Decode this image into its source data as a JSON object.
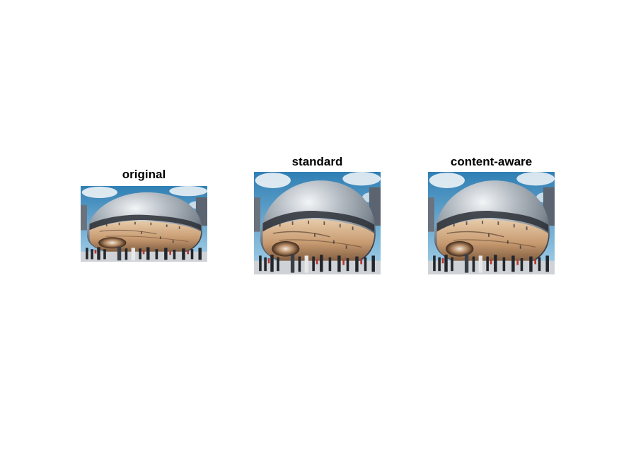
{
  "panels": [
    {
      "title": "original"
    },
    {
      "title": "standard"
    },
    {
      "title": "content-aware"
    }
  ],
  "colors": {
    "sky": "#3f8fc0",
    "sky_light": "#b8dcef",
    "cloud": "#f2f5f7",
    "bean_top": "#9aa3ab",
    "bean_highlight": "#e9edf0",
    "bean_dark": "#2a2d33",
    "bean_warm": "#c9a07a",
    "bean_warm_dark": "#6d4c34",
    "ground": "#d9dcdf"
  }
}
